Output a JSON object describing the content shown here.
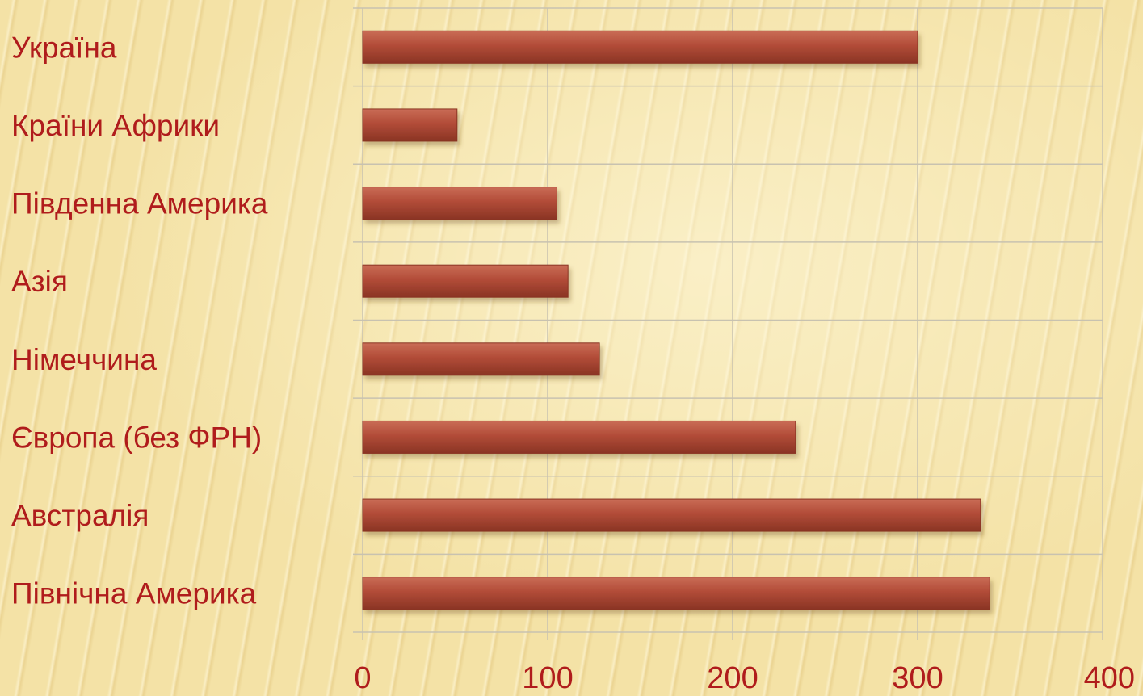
{
  "chart_data": {
    "type": "bar",
    "orientation": "horizontal",
    "categories": [
      "Україна",
      "Країни Африки",
      "Південна Америка",
      "Азія",
      "Німеччина",
      "Європа (без ФРН)",
      "Австралія",
      "Північна Америка"
    ],
    "values": [
      300,
      51,
      105,
      111,
      128,
      234,
      334,
      339
    ],
    "xlim": [
      0,
      400
    ],
    "x_ticks": [
      "0",
      "100",
      "200",
      "300",
      "400"
    ],
    "grid": true,
    "legend": "none",
    "bar_color": "#b5513e",
    "label_color": "#b01c1c",
    "grid_color": "#c8c2b0"
  }
}
